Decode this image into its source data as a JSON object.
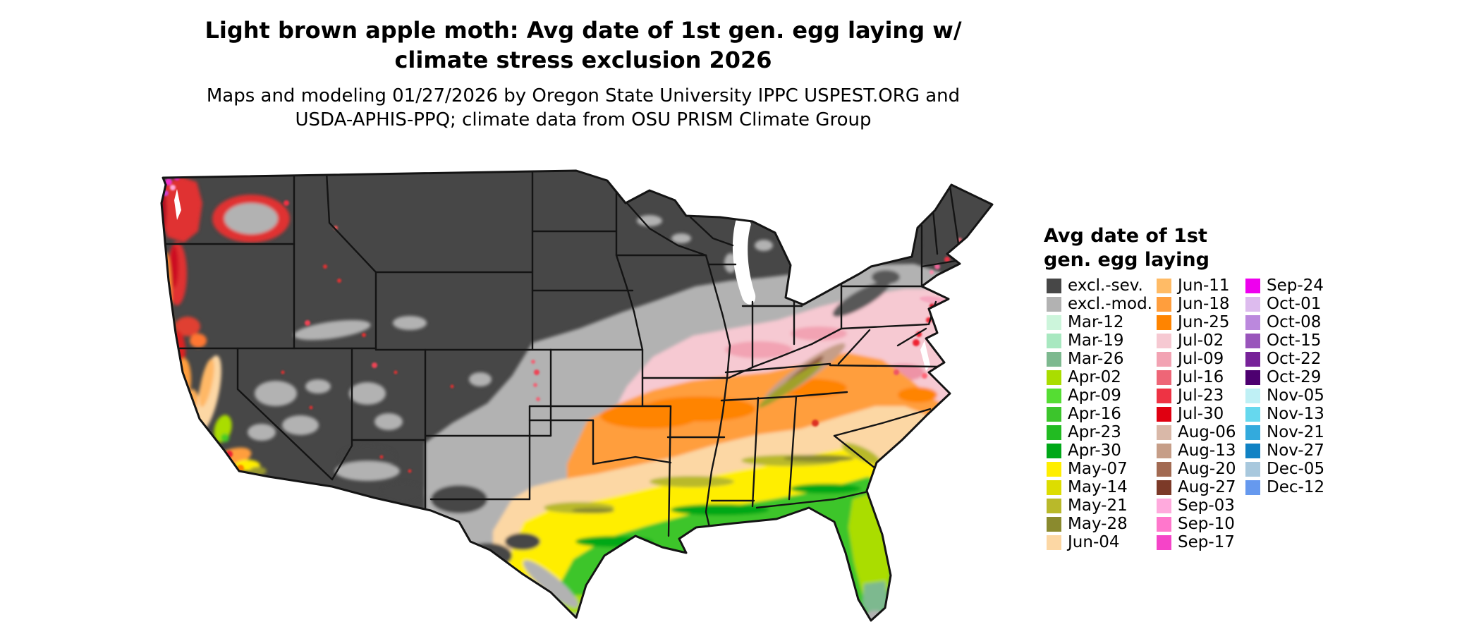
{
  "title": {
    "line1": "Light brown apple moth: Avg date of 1st gen. egg laying w/",
    "line2": "climate stress exclusion 2026"
  },
  "subtitle": {
    "line1": "Maps and modeling 01/27/2026 by Oregon State University IPPC USPEST.ORG and",
    "line2": "USDA-APHIS-PPQ; climate data from OSU PRISM Climate Group"
  },
  "map": {
    "kind": "choropleth-raster",
    "area": "Contiguous United States with state boundaries",
    "description": "Interior west and northern states excluded (dark gray); moderate-exclusion gray band through the central plains and Ohio valley; egg-laying date classes run from pink/orange in the mid-south to peach, yellow, olive and green along the Gulf coast, Florida and south Texas; reds, magentas and oranges along the Pacific coast valleys."
  },
  "legend": {
    "title_line1": "Avg date of 1st",
    "title_line2": "gen. egg laying",
    "columns": [
      {
        "items": [
          {
            "label": "excl.-sev.",
            "color": "#474747"
          },
          {
            "label": "excl.-mod.",
            "color": "#b2b2b2"
          },
          {
            "label": "Mar-12",
            "color": "#ccf5db"
          },
          {
            "label": "Mar-19",
            "color": "#a8e8c0"
          },
          {
            "label": "Mar-26",
            "color": "#7db98f"
          },
          {
            "label": "Apr-02",
            "color": "#aadd00"
          },
          {
            "label": "Apr-09",
            "color": "#55dd33"
          },
          {
            "label": "Apr-16",
            "color": "#3cc52c"
          },
          {
            "label": "Apr-23",
            "color": "#22bb22"
          },
          {
            "label": "Apr-30",
            "color": "#00a818"
          },
          {
            "label": "May-07",
            "color": "#ffee00"
          },
          {
            "label": "May-14",
            "color": "#dddd00"
          },
          {
            "label": "May-21",
            "color": "#b9b92a"
          },
          {
            "label": "May-28",
            "color": "#8a8a2e"
          },
          {
            "label": "Jun-04",
            "color": "#fcd7a4"
          }
        ]
      },
      {
        "items": [
          {
            "label": "Jun-11",
            "color": "#ffbb66"
          },
          {
            "label": "Jun-18",
            "color": "#ff9e3d"
          },
          {
            "label": "Jun-25",
            "color": "#ff8400"
          },
          {
            "label": "Jul-02",
            "color": "#f6c9d2"
          },
          {
            "label": "Jul-09",
            "color": "#f2a3b3"
          },
          {
            "label": "Jul-16",
            "color": "#ee6677"
          },
          {
            "label": "Jul-23",
            "color": "#ee3344"
          },
          {
            "label": "Jul-30",
            "color": "#e00011"
          },
          {
            "label": "Aug-06",
            "color": "#d9b8a8"
          },
          {
            "label": "Aug-13",
            "color": "#c69e88"
          },
          {
            "label": "Aug-20",
            "color": "#a26a52"
          },
          {
            "label": "Aug-27",
            "color": "#7c3a28"
          },
          {
            "label": "Sep-03",
            "color": "#ffaadd"
          },
          {
            "label": "Sep-10",
            "color": "#ff77cc"
          },
          {
            "label": "Sep-17",
            "color": "#f544c8"
          }
        ]
      },
      {
        "items": [
          {
            "label": "Sep-24",
            "color": "#ee00ee"
          },
          {
            "label": "Oct-01",
            "color": "#ddbbee"
          },
          {
            "label": "Oct-08",
            "color": "#bb88dd"
          },
          {
            "label": "Oct-15",
            "color": "#9955bb"
          },
          {
            "label": "Oct-22",
            "color": "#772299"
          },
          {
            "label": "Oct-29",
            "color": "#4d0070"
          },
          {
            "label": "Nov-05",
            "color": "#bff0f5"
          },
          {
            "label": "Nov-13",
            "color": "#66d8ee"
          },
          {
            "label": "Nov-21",
            "color": "#33aadd"
          },
          {
            "label": "Nov-27",
            "color": "#1182c4"
          },
          {
            "label": "Dec-05",
            "color": "#a8c8dd"
          },
          {
            "label": "Dec-12",
            "color": "#6699ee"
          }
        ]
      }
    ]
  }
}
